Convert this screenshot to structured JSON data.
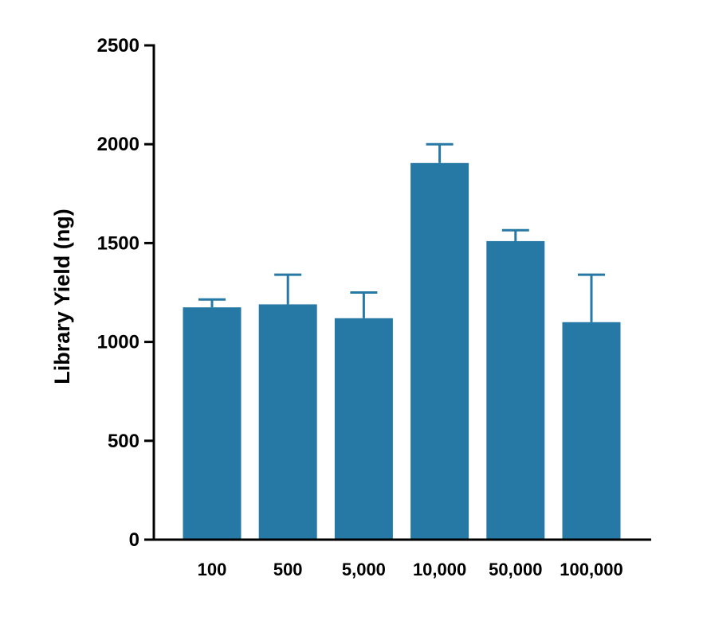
{
  "chart_data": {
    "type": "bar",
    "title": "",
    "xlabel": "",
    "ylabel": "Library Yield (ng)",
    "categories": [
      "100",
      "500",
      "5,000",
      "10,000",
      "50,000",
      "100,000"
    ],
    "values": [
      1175,
      1190,
      1120,
      1905,
      1510,
      1100
    ],
    "error_upper": [
      40,
      150,
      130,
      95,
      55,
      240
    ],
    "ylim": [
      0,
      2500
    ],
    "yticks": [
      0,
      500,
      1000,
      1500,
      2000,
      2500
    ],
    "ytick_labels": [
      "0",
      "500",
      "1000",
      "1500",
      "2000",
      "2500"
    ],
    "grid": false,
    "legend": "none",
    "colors": {
      "bar": "#2678a5",
      "axis": "#000000"
    }
  }
}
